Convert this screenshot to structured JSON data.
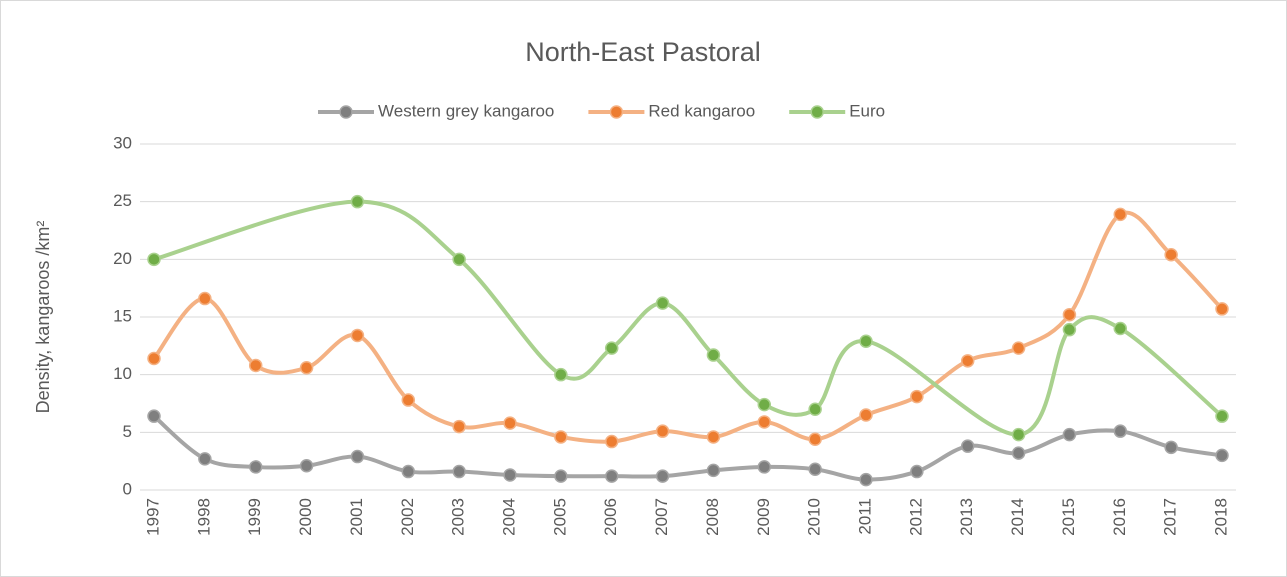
{
  "chart_data": {
    "type": "line",
    "title": "North-East Pastoral",
    "y_label": "Density, kangaroos /km²",
    "x": [
      1997,
      1998,
      1999,
      2000,
      2001,
      2002,
      2003,
      2004,
      2005,
      2006,
      2007,
      2008,
      2009,
      2010,
      2011,
      2012,
      2013,
      2014,
      2015,
      2016,
      2017,
      2018
    ],
    "xlim": [
      1997,
      2018
    ],
    "xticks": [
      1997,
      1998,
      1999,
      2000,
      2001,
      2002,
      2003,
      2004,
      2005,
      2006,
      2007,
      2008,
      2009,
      2010,
      2011,
      2012,
      2013,
      2014,
      2015,
      2016,
      2017,
      2018
    ],
    "ylim": [
      0,
      30
    ],
    "yticks": [
      0,
      5,
      10,
      15,
      20,
      25,
      30
    ],
    "grid": true,
    "legend": "top",
    "smooth": true,
    "series": [
      {
        "name": "Western grey kangaroo",
        "color": "#7f7f7f",
        "line_color": "#a5a5a5",
        "values": [
          6.4,
          2.7,
          2.0,
          2.1,
          2.9,
          1.6,
          1.6,
          1.3,
          1.2,
          1.2,
          1.2,
          1.7,
          2.0,
          1.8,
          0.9,
          1.6,
          3.8,
          3.2,
          4.8,
          5.1,
          3.7,
          3.0
        ]
      },
      {
        "name": "Red kangaroo",
        "color": "#ed7d31",
        "line_color": "#f4b183",
        "values": [
          11.4,
          16.6,
          10.8,
          10.6,
          13.4,
          7.8,
          5.5,
          5.8,
          4.6,
          4.2,
          5.1,
          4.6,
          5.9,
          4.4,
          6.5,
          8.1,
          11.2,
          12.3,
          15.2,
          23.9,
          20.4,
          15.7
        ]
      },
      {
        "name": "Euro",
        "color": "#70ad47",
        "line_color": "#a9d18e",
        "x": [
          1997,
          2001,
          2003,
          2005,
          2006,
          2007,
          2008,
          2009,
          2010,
          2011,
          2014,
          2015,
          2016,
          2018
        ],
        "values": [
          20,
          25,
          20,
          10,
          12.3,
          16.2,
          11.7,
          7.4,
          7.0,
          12.9,
          4.8,
          13.9,
          14.0,
          6.4
        ]
      }
    ]
  }
}
